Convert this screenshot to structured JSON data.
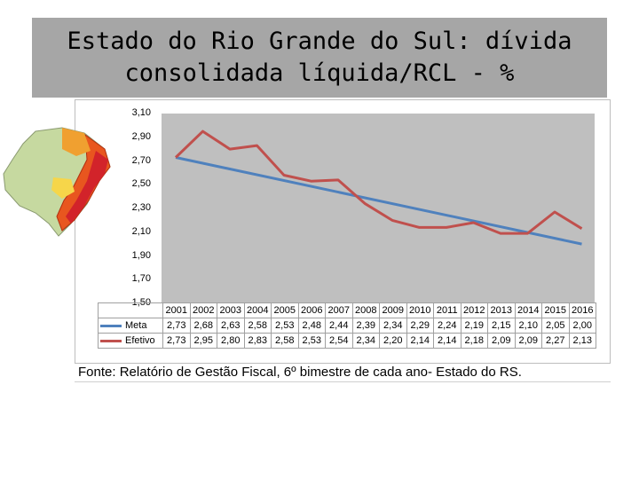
{
  "title": "Estado do Rio Grande do Sul: dívida consolidada líquida/RCL - %",
  "source": "Fonte: Relatório de Gestão Fiscal, 6º bimestre de cada ano- Estado do RS.",
  "colors": {
    "meta": "#4f81bd",
    "efetivo": "#c0504d",
    "plot_bg": "#bfbfbf",
    "title_bg": "#a6a6a6"
  },
  "chart_data": {
    "type": "line",
    "title": "Estado do Rio Grande do Sul: dívida consolidada líquida/RCL - %",
    "xlabel": "",
    "ylabel": "",
    "categories": [
      "2001",
      "2002",
      "2003",
      "2004",
      "2005",
      "2006",
      "2007",
      "2008",
      "2009",
      "2010",
      "2011",
      "2012",
      "2013",
      "2014",
      "2015",
      "2016"
    ],
    "series": [
      {
        "name": "Meta",
        "values": [
          2.73,
          2.68,
          2.63,
          2.58,
          2.53,
          2.48,
          2.44,
          2.39,
          2.34,
          2.29,
          2.24,
          2.19,
          2.15,
          2.1,
          2.05,
          2.0
        ],
        "labels": [
          "2,73",
          "2,68",
          "2,63",
          "2,58",
          "2,53",
          "2,48",
          "2,44",
          "2,39",
          "2,34",
          "2,29",
          "2,24",
          "2,19",
          "2,15",
          "2,10",
          "2,05",
          "2,00"
        ]
      },
      {
        "name": "Efetivo",
        "values": [
          2.73,
          2.95,
          2.8,
          2.83,
          2.58,
          2.53,
          2.54,
          2.34,
          2.2,
          2.14,
          2.14,
          2.18,
          2.09,
          2.09,
          2.27,
          2.13
        ],
        "labels": [
          "2,73",
          "2,95",
          "2,80",
          "2,83",
          "2,58",
          "2,53",
          "2,54",
          "2,34",
          "2,20",
          "2,14",
          "2,14",
          "2,18",
          "2,09",
          "2,09",
          "2,27",
          "2,13"
        ]
      }
    ],
    "ylim": [
      1.5,
      3.1
    ],
    "yticks": [
      "3,10",
      "2,90",
      "2,70",
      "2,50",
      "2,30",
      "2,10",
      "1,90",
      "1,70",
      "1,50"
    ],
    "grid": false,
    "legend": "data-table"
  }
}
